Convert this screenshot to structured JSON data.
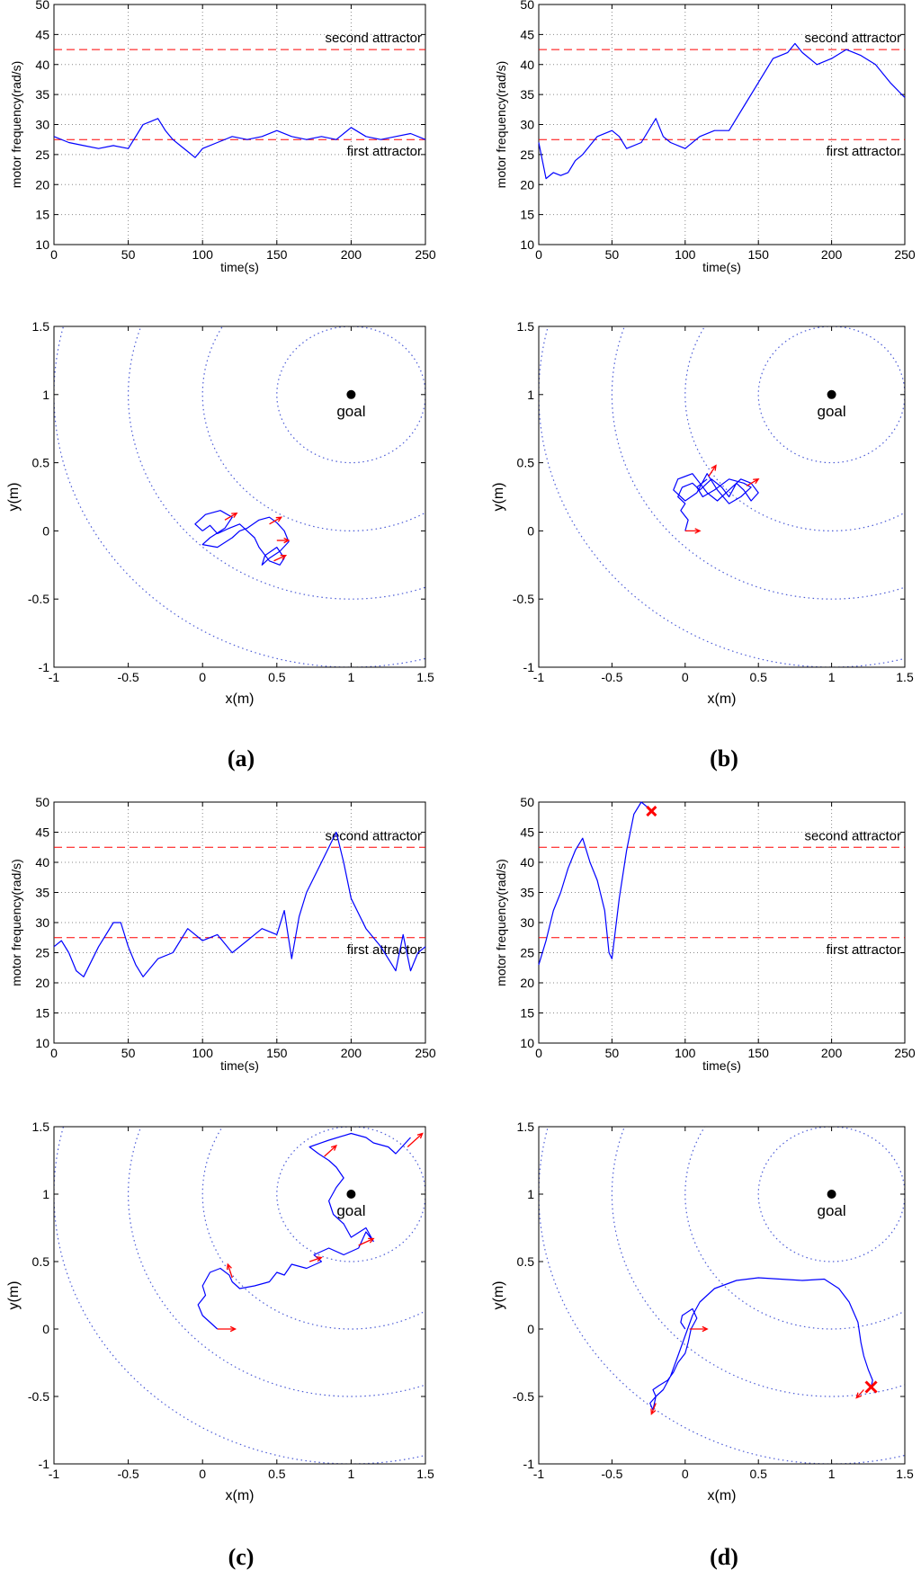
{
  "chart_data": [
    {
      "panel": "a",
      "type": "line",
      "title": "",
      "xlabel": "time(s)",
      "ylabel": "motor frequency(rad/s)",
      "xlim": [
        0,
        250
      ],
      "ylim": [
        10,
        50
      ],
      "xticks": [
        "0",
        "50",
        "100",
        "150",
        "200",
        "250"
      ],
      "yticks": [
        "10",
        "15",
        "20",
        "25",
        "30",
        "35",
        "40",
        "45",
        "50"
      ],
      "grid": true,
      "reference_lines": [
        {
          "name": "second attractor",
          "y": 42.5,
          "label": "second attractor",
          "color": "#ff0000"
        },
        {
          "name": "first attractor",
          "y": 27.5,
          "label": "first attractor",
          "color": "#ff0000"
        }
      ],
      "series": [
        {
          "name": "motor frequency",
          "color": "#0000ff",
          "x": [
            0,
            10,
            20,
            30,
            40,
            50,
            55,
            60,
            65,
            70,
            75,
            80,
            85,
            90,
            95,
            100,
            110,
            120,
            130,
            140,
            150,
            160,
            170,
            180,
            190,
            200,
            210,
            220,
            230,
            240,
            250
          ],
          "y": [
            28,
            27,
            26.5,
            26,
            26.5,
            26,
            28,
            30,
            30.5,
            31,
            29,
            27.5,
            26.5,
            25.5,
            24.5,
            26,
            27,
            28,
            27.5,
            28,
            29,
            28,
            27.5,
            28,
            27.5,
            29.5,
            28,
            27.5,
            28,
            28.5,
            27.5
          ]
        }
      ]
    },
    {
      "panel": "b",
      "type": "line",
      "title": "",
      "xlabel": "time(s)",
      "ylabel": "motor frequency(rad/s)",
      "xlim": [
        0,
        250
      ],
      "ylim": [
        10,
        50
      ],
      "xticks": [
        "0",
        "50",
        "100",
        "150",
        "200",
        "250"
      ],
      "yticks": [
        "10",
        "15",
        "20",
        "25",
        "30",
        "35",
        "40",
        "45",
        "50"
      ],
      "grid": true,
      "reference_lines": [
        {
          "name": "second attractor",
          "y": 42.5,
          "label": "second attractor",
          "color": "#ff0000"
        },
        {
          "name": "first attractor",
          "y": 27.5,
          "label": "first attractor",
          "color": "#ff0000"
        }
      ],
      "series": [
        {
          "name": "motor frequency",
          "color": "#0000ff",
          "x": [
            0,
            5,
            10,
            15,
            20,
            25,
            30,
            40,
            50,
            55,
            60,
            70,
            80,
            85,
            90,
            100,
            110,
            120,
            130,
            140,
            150,
            160,
            170,
            175,
            180,
            190,
            200,
            210,
            220,
            230,
            240,
            250
          ],
          "y": [
            27,
            21,
            22,
            21.5,
            22,
            24,
            25,
            28,
            29,
            28,
            26,
            27,
            31,
            28,
            27,
            26,
            28,
            29,
            29,
            33,
            37,
            41,
            42,
            43.5,
            42,
            40,
            41,
            42.5,
            41.5,
            40,
            37,
            34.5
          ]
        }
      ]
    },
    {
      "panel": "c",
      "type": "line",
      "title": "",
      "xlabel": "time(s)",
      "ylabel": "motor frequency(rad/s)",
      "xlim": [
        0,
        250
      ],
      "ylim": [
        10,
        50
      ],
      "xticks": [
        "0",
        "50",
        "100",
        "150",
        "200",
        "250"
      ],
      "yticks": [
        "10",
        "15",
        "20",
        "25",
        "30",
        "35",
        "40",
        "45",
        "50"
      ],
      "grid": true,
      "reference_lines": [
        {
          "name": "second attractor",
          "y": 42.5,
          "label": "second attractor",
          "color": "#ff0000"
        },
        {
          "name": "first attractor",
          "y": 27.5,
          "label": "first attractor",
          "color": "#ff0000"
        }
      ],
      "series": [
        {
          "name": "motor frequency",
          "color": "#0000ff",
          "x": [
            0,
            5,
            10,
            15,
            20,
            30,
            40,
            45,
            50,
            55,
            60,
            70,
            80,
            90,
            100,
            110,
            120,
            130,
            140,
            150,
            155,
            160,
            165,
            170,
            180,
            190,
            195,
            200,
            210,
            220,
            230,
            235,
            240,
            245,
            250
          ],
          "y": [
            26,
            27,
            25,
            22,
            21,
            26,
            30,
            30,
            26,
            23,
            21,
            24,
            25,
            29,
            27,
            28,
            25,
            27,
            29,
            28,
            32,
            24,
            31,
            35,
            40,
            45,
            40,
            34,
            29,
            26,
            22,
            28,
            22,
            25,
            26
          ]
        }
      ]
    },
    {
      "panel": "d",
      "type": "line",
      "title": "",
      "xlabel": "time(s)",
      "ylabel": "motor frequency(rad/s)",
      "xlim": [
        0,
        250
      ],
      "ylim": [
        10,
        50
      ],
      "xticks": [
        "0",
        "50",
        "100",
        "150",
        "200",
        "250"
      ],
      "yticks": [
        "10",
        "15",
        "20",
        "25",
        "30",
        "35",
        "40",
        "45",
        "50"
      ],
      "grid": true,
      "reference_lines": [
        {
          "name": "second attractor",
          "y": 42.5,
          "label": "second attractor",
          "color": "#ff0000"
        },
        {
          "name": "first attractor",
          "y": 27.5,
          "label": "first attractor",
          "color": "#ff0000"
        }
      ],
      "end_marker": {
        "x": 77,
        "y": 48.5,
        "color": "#ff0000"
      },
      "series": [
        {
          "name": "motor frequency",
          "color": "#0000ff",
          "x": [
            0,
            5,
            10,
            15,
            20,
            25,
            30,
            35,
            40,
            45,
            48,
            50,
            55,
            60,
            65,
            70,
            75
          ],
          "y": [
            23,
            27,
            32,
            35,
            39,
            42,
            44,
            40,
            37,
            32,
            25,
            24,
            34,
            42,
            48,
            50,
            49
          ]
        }
      ]
    },
    {
      "panel": "a",
      "type": "line",
      "title": "",
      "xlabel": "x(m)",
      "ylabel": "y(m)",
      "xlim": [
        -1,
        1.5
      ],
      "ylim": [
        -1,
        1.5
      ],
      "xticks": [
        "-1",
        "-0.5",
        "0",
        "0.5",
        "1",
        "1.5"
      ],
      "yticks": [
        "-1",
        "-0.5",
        "0",
        "0.5",
        "1",
        "1.5"
      ],
      "grid": false,
      "goal": {
        "x": 1,
        "y": 1,
        "label": "goal"
      },
      "circles": {
        "center": [
          1,
          1
        ],
        "radii": [
          0.5,
          1,
          1.5,
          2
        ],
        "color": "#4b5bd6"
      },
      "series": [
        {
          "name": "trajectory",
          "color": "#0000ff",
          "x": [
            0,
            -0.05,
            0.02,
            0.12,
            0.2,
            0.15,
            0.05,
            0.0,
            0.1,
            0.2,
            0.25,
            0.3,
            0.38,
            0.45,
            0.5,
            0.55,
            0.58,
            0.52,
            0.45,
            0.4,
            0.42,
            0.5,
            0.55,
            0.52,
            0.45,
            0.38,
            0.35,
            0.3,
            0.25,
            0.18,
            0.1,
            0.05,
            0.0
          ],
          "y": [
            0,
            0.05,
            0.12,
            0.15,
            0.1,
            0.02,
            -0.05,
            -0.1,
            -0.12,
            -0.05,
            0.0,
            0.02,
            0.08,
            0.1,
            0.06,
            0.0,
            -0.08,
            -0.15,
            -0.2,
            -0.25,
            -0.18,
            -0.12,
            -0.2,
            -0.25,
            -0.22,
            -0.12,
            -0.05,
            0.0,
            0.05,
            0.02,
            -0.02,
            0.04,
            0.0
          ]
        }
      ],
      "arrows": [
        {
          "x": 0.15,
          "y": 0.08,
          "dx": 0.08,
          "dy": 0.05
        },
        {
          "x": 0.45,
          "y": 0.05,
          "dx": 0.08,
          "dy": 0.05
        },
        {
          "x": 0.5,
          "y": -0.07,
          "dx": 0.08,
          "dy": 0.0
        },
        {
          "x": 0.48,
          "y": -0.22,
          "dx": 0.08,
          "dy": 0.04
        }
      ]
    },
    {
      "panel": "b",
      "type": "line",
      "title": "",
      "xlabel": "x(m)",
      "ylabel": "y(m)",
      "xlim": [
        -1,
        1.5
      ],
      "ylim": [
        -1,
        1.5
      ],
      "xticks": [
        "-1",
        "-0.5",
        "0",
        "0.5",
        "1",
        "1.5"
      ],
      "yticks": [
        "-1",
        "-0.5",
        "0",
        "0.5",
        "1",
        "1.5"
      ],
      "grid": false,
      "goal": {
        "x": 1,
        "y": 1,
        "label": "goal"
      },
      "circles": {
        "center": [
          1,
          1
        ],
        "radii": [
          0.5,
          1,
          1.5,
          2
        ],
        "color": "#4b5bd6"
      },
      "series": [
        {
          "name": "trajectory",
          "color": "#0000ff",
          "x": [
            0,
            0.02,
            -0.03,
            0.0,
            -0.05,
            -0.02,
            0.05,
            0.1,
            0.18,
            0.25,
            0.3,
            0.35,
            0.4,
            0.45,
            0.5,
            0.45,
            0.38,
            0.3,
            0.22,
            0.15,
            0.1,
            0.05,
            -0.05,
            -0.08,
            0.0,
            0.08,
            0.15,
            0.22,
            0.3,
            0.38,
            0.45,
            0.4,
            0.3,
            0.2,
            0.12,
            0.08,
            0.15
          ],
          "y": [
            0,
            0.08,
            0.15,
            0.2,
            0.25,
            0.32,
            0.35,
            0.3,
            0.38,
            0.32,
            0.25,
            0.35,
            0.3,
            0.22,
            0.28,
            0.35,
            0.38,
            0.3,
            0.22,
            0.28,
            0.35,
            0.42,
            0.38,
            0.3,
            0.22,
            0.28,
            0.42,
            0.3,
            0.2,
            0.25,
            0.32,
            0.35,
            0.38,
            0.3,
            0.25,
            0.32,
            0.38
          ]
        }
      ],
      "arrows": [
        {
          "x": 0.0,
          "y": 0.0,
          "dx": 0.1,
          "dy": 0.0
        },
        {
          "x": 0.16,
          "y": 0.4,
          "dx": 0.05,
          "dy": 0.08
        },
        {
          "x": 0.42,
          "y": 0.33,
          "dx": 0.08,
          "dy": 0.05
        }
      ]
    },
    {
      "panel": "c",
      "type": "line",
      "title": "",
      "xlabel": "x(m)",
      "ylabel": "y(m)",
      "xlim": [
        -1,
        1.5
      ],
      "ylim": [
        -1,
        1.5
      ],
      "xticks": [
        "-1",
        "-0.5",
        "0",
        "0.5",
        "1",
        "1.5"
      ],
      "yticks": [
        "-1",
        "-0.5",
        "0",
        "0.5",
        "1",
        "1.5"
      ],
      "grid": false,
      "goal": {
        "x": 1,
        "y": 1,
        "label": "goal"
      },
      "circles": {
        "center": [
          1,
          1
        ],
        "radii": [
          0.5,
          1,
          1.5,
          2
        ],
        "color": "#4b5bd6"
      },
      "series": [
        {
          "name": "trajectory",
          "color": "#0000ff",
          "x": [
            0.1,
            0.05,
            0.0,
            -0.03,
            0.02,
            0.0,
            0.05,
            0.12,
            0.18,
            0.2,
            0.25,
            0.35,
            0.45,
            0.5,
            0.55,
            0.6,
            0.7,
            0.8,
            0.75,
            0.85,
            0.95,
            1.05,
            1.1,
            1.15,
            1.1,
            1.0,
            0.95,
            0.88,
            0.85,
            0.9,
            0.95,
            0.9,
            0.85,
            0.78,
            0.72,
            0.85,
            1.0,
            1.1,
            1.15,
            1.25,
            1.3,
            1.4
          ],
          "y": [
            0.0,
            0.05,
            0.1,
            0.18,
            0.25,
            0.32,
            0.42,
            0.45,
            0.4,
            0.35,
            0.3,
            0.32,
            0.35,
            0.42,
            0.4,
            0.48,
            0.45,
            0.5,
            0.55,
            0.6,
            0.55,
            0.6,
            0.72,
            0.65,
            0.75,
            0.68,
            0.78,
            0.85,
            0.95,
            1.05,
            1.12,
            1.2,
            1.25,
            1.3,
            1.35,
            1.4,
            1.45,
            1.42,
            1.38,
            1.35,
            1.3,
            1.42
          ]
        }
      ],
      "arrows": [
        {
          "x": 0.1,
          "y": 0.0,
          "dx": 0.12,
          "dy": 0.0
        },
        {
          "x": 0.2,
          "y": 0.38,
          "dx": -0.03,
          "dy": 0.1
        },
        {
          "x": 0.72,
          "y": 0.5,
          "dx": 0.08,
          "dy": 0.03
        },
        {
          "x": 1.05,
          "y": 0.62,
          "dx": 0.1,
          "dy": 0.05
        },
        {
          "x": 0.82,
          "y": 1.28,
          "dx": 0.08,
          "dy": 0.08
        },
        {
          "x": 1.38,
          "y": 1.35,
          "dx": 0.1,
          "dy": 0.1
        }
      ]
    },
    {
      "panel": "d",
      "type": "line",
      "title": "",
      "xlabel": "x(m)",
      "ylabel": "y(m)",
      "xlim": [
        -1,
        1.5
      ],
      "ylim": [
        -1,
        1.5
      ],
      "xticks": [
        "-1",
        "-0.5",
        "0",
        "0.5",
        "1",
        "1.5"
      ],
      "yticks": [
        "-1",
        "-0.5",
        "0",
        "0.5",
        "1",
        "1.5"
      ],
      "grid": false,
      "goal": {
        "x": 1,
        "y": 1,
        "label": "goal"
      },
      "circles": {
        "center": [
          1,
          1
        ],
        "radii": [
          0.5,
          1,
          1.5,
          2
        ],
        "color": "#4b5bd6"
      },
      "end_marker": {
        "x": 1.27,
        "y": -0.43,
        "color": "#ff0000"
      },
      "series": [
        {
          "name": "trajectory",
          "color": "#0000ff",
          "x": [
            0.0,
            -0.03,
            -0.02,
            0.05,
            0.08,
            0.04,
            0.02,
            0.0,
            -0.05,
            -0.08,
            -0.12,
            -0.18,
            -0.22,
            -0.2,
            -0.24,
            -0.22,
            -0.2,
            -0.15,
            -0.1,
            -0.05,
            0.0,
            0.05,
            0.1,
            0.2,
            0.35,
            0.5,
            0.65,
            0.8,
            0.95,
            1.05,
            1.12,
            1.18,
            1.2,
            1.22,
            1.25,
            1.28,
            1.27
          ],
          "y": [
            0.0,
            0.05,
            0.1,
            0.15,
            0.08,
            0.0,
            -0.1,
            -0.18,
            -0.25,
            -0.32,
            -0.38,
            -0.42,
            -0.45,
            -0.5,
            -0.55,
            -0.6,
            -0.5,
            -0.45,
            -0.35,
            -0.2,
            -0.05,
            0.1,
            0.2,
            0.3,
            0.36,
            0.38,
            0.37,
            0.36,
            0.37,
            0.3,
            0.2,
            0.05,
            -0.1,
            -0.2,
            -0.3,
            -0.38,
            -0.43
          ]
        }
      ],
      "arrows": [
        {
          "x": 0.03,
          "y": 0.0,
          "dx": 0.12,
          "dy": 0.0
        },
        {
          "x": -0.2,
          "y": -0.55,
          "dx": -0.03,
          "dy": -0.08
        },
        {
          "x": 1.22,
          "y": -0.45,
          "dx": -0.05,
          "dy": -0.06
        }
      ]
    }
  ],
  "labels": {
    "a": "(a)",
    "b": "(b)",
    "c": "(c)",
    "d": "(d)"
  }
}
